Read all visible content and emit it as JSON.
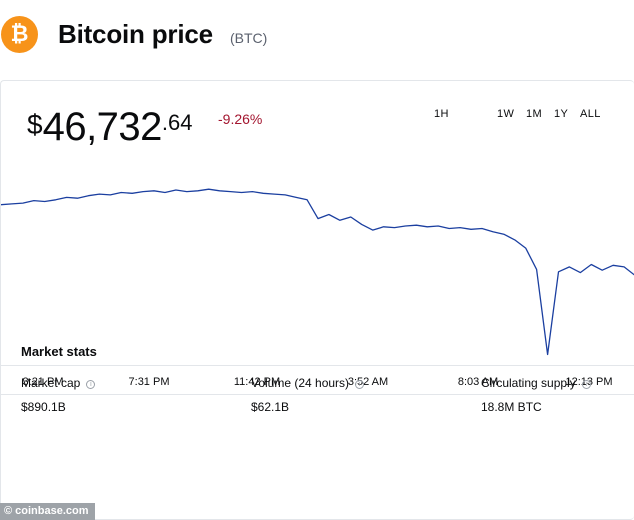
{
  "header": {
    "logo_glyph": "₿",
    "logo_icon": "bitcoin-logo",
    "title": "Bitcoin price",
    "ticker": "(BTC)"
  },
  "price": {
    "currency": "$",
    "whole": "46,732",
    "decimal": ".64",
    "change": "-9.26%"
  },
  "ranges": [
    "1H",
    "1W",
    "1M",
    "1Y",
    "ALL"
  ],
  "chart_data": {
    "type": "line",
    "x_ticks": [
      "3:21 PM",
      "7:31 PM",
      "11:42 PM",
      "3:52 AM",
      "8:03 AM",
      "12:13 PM"
    ],
    "series": [
      {
        "values": [
          51050,
          51100,
          51150,
          51300,
          51250,
          51350,
          51500,
          51450,
          51600,
          51700,
          51650,
          51800,
          51750,
          51850,
          51900,
          51800,
          51950,
          51850,
          51900,
          52000,
          51900,
          51850,
          51800,
          51850,
          51750,
          51700,
          51650,
          51500,
          51350,
          50200,
          50450,
          50100,
          50300,
          49850,
          49500,
          49700,
          49650,
          49750,
          49800,
          49700,
          49750,
          49600,
          49650,
          49550,
          49600,
          49400,
          49250,
          48900,
          48400,
          47100,
          41900,
          46950,
          47250,
          46900,
          47400,
          47050,
          47350,
          47250,
          46730
        ]
      }
    ],
    "line_color": "#1b3fa0",
    "grid": false,
    "axis_color": "#e3e6ea"
  },
  "stats": {
    "title": "Market stats",
    "items": [
      {
        "label": "Market cap",
        "value": "$890.1B"
      },
      {
        "label": "Volume (24 hours)",
        "value": "$62.1B"
      },
      {
        "label": "Circulating supply",
        "value": "18.8M BTC"
      }
    ]
  },
  "watermark": "© coinbase.com",
  "colors": {
    "brand": "#f7931a",
    "negative": "#a3152f",
    "line": "#1b3fa0"
  }
}
